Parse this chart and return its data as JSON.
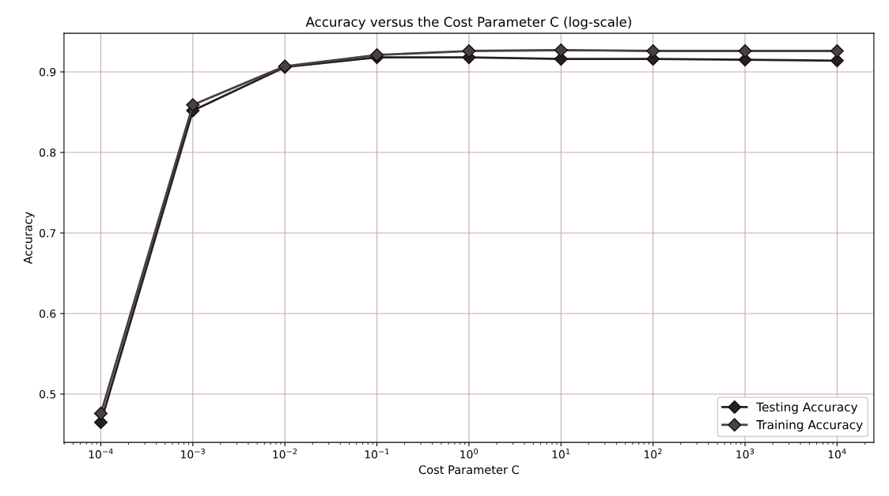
{
  "chart_data": {
    "type": "line",
    "title": "Accuracy versus the Cost Parameter C (log-scale)",
    "xlabel": "Cost Parameter C",
    "ylabel": "Accuracy",
    "x": [
      0.0001,
      0.001,
      0.01,
      0.1,
      1,
      10,
      100,
      1000,
      10000
    ],
    "series": [
      {
        "name": "Testing Accuracy",
        "color": "#262020",
        "values": [
          0.465,
          0.852,
          0.906,
          0.918,
          0.918,
          0.916,
          0.916,
          0.915,
          0.914
        ]
      },
      {
        "name": "Training Accuracy",
        "color": "#4a4040",
        "values": [
          0.476,
          0.859,
          0.907,
          0.921,
          0.926,
          0.927,
          0.926,
          0.926,
          0.926
        ]
      }
    ],
    "xlim": [
      3.98e-05,
      25100
    ],
    "ylim": [
      0.44,
      0.948
    ],
    "xticks": [
      {
        "value": 0.0001,
        "label": "10$^{−4}$"
      },
      {
        "value": 0.001,
        "label": "10$^{−3}$"
      },
      {
        "value": 0.01,
        "label": "10$^{−2}$"
      },
      {
        "value": 0.1,
        "label": "10$^{−1}$"
      },
      {
        "value": 1,
        "label": "10$^{0}$"
      },
      {
        "value": 10,
        "label": "10$^{1}$"
      },
      {
        "value": 100,
        "label": "10$^{2}$"
      },
      {
        "value": 1000,
        "label": "10$^{3}$"
      },
      {
        "value": 10000,
        "label": "10$^{4}$"
      }
    ],
    "yticks": [
      0.5,
      0.6,
      0.7,
      0.8,
      0.9
    ],
    "log": "x",
    "grid": true,
    "legend": "bottom right",
    "marker": "diamond",
    "line_style": "solid"
  }
}
